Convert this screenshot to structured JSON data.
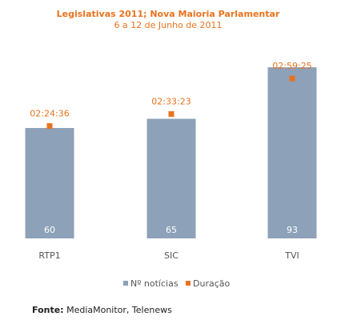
{
  "colors": {
    "accent": "#e8731e",
    "bar": "#8da1b8",
    "text": "#555555"
  },
  "chart_data": {
    "type": "bar",
    "title": "Legislativas 2011; Nova Maioria Parlamentar",
    "subtitle": "6 a 12 de Junho de 2011",
    "categories": [
      "RTP1",
      "SIC",
      "TVI"
    ],
    "series": [
      {
        "name": "Nº notícias",
        "type": "bar",
        "values": [
          60,
          65,
          93
        ],
        "labels": [
          "60",
          "65",
          "93"
        ]
      },
      {
        "name": "Duração",
        "type": "point",
        "values": [
          "02:24:36",
          "02:33:23",
          "02:59:25"
        ],
        "labels": [
          "02:24:36",
          "02:33:23",
          "02:59:25"
        ]
      }
    ],
    "ylim": [
      0,
      100
    ],
    "grid": false,
    "legend": "bottom"
  },
  "source": {
    "label": "Fonte:",
    "text": "MediaMonitor, Telenews"
  }
}
